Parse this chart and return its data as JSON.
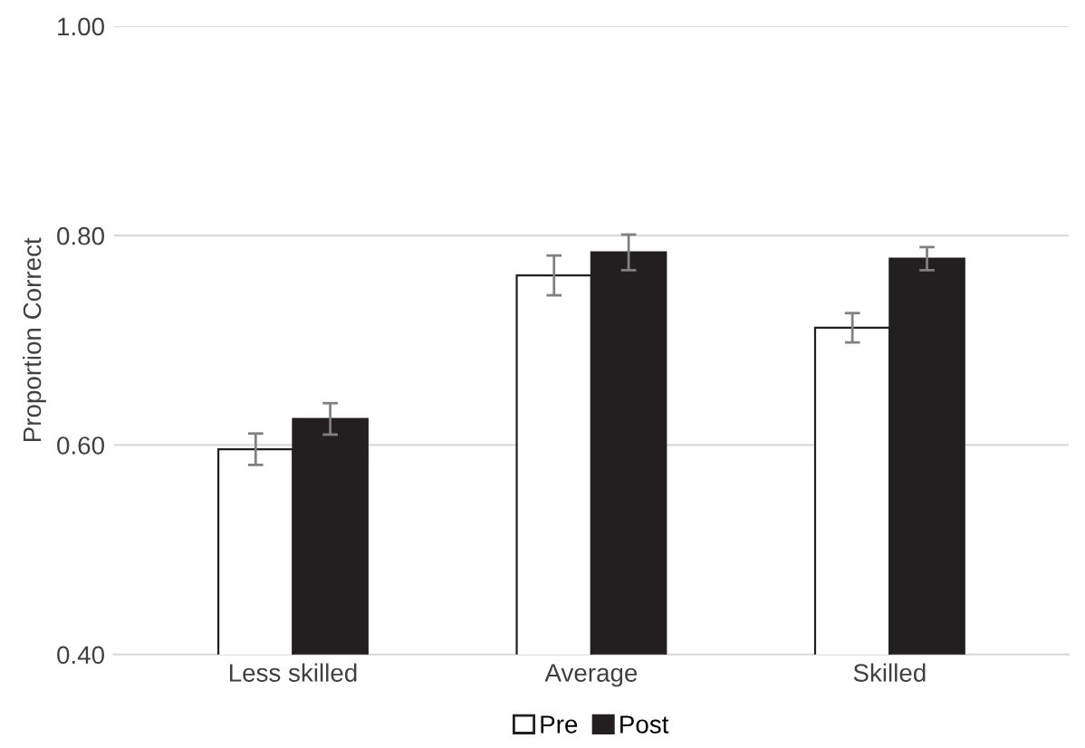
{
  "chart_data": {
    "type": "bar",
    "ylabel": "Proportion Correct",
    "categories": [
      "Less skilled",
      "Average",
      "Skilled"
    ],
    "series": [
      {
        "name": "Pre",
        "color": "#ffffff",
        "values": [
          0.596,
          0.762,
          0.712
        ],
        "errors": [
          0.015,
          0.019,
          0.014
        ]
      },
      {
        "name": "Post",
        "color": "#231f20",
        "values": [
          0.625,
          0.784,
          0.778
        ],
        "errors": [
          0.015,
          0.017,
          0.011
        ]
      }
    ],
    "ylim": [
      0.4,
      1.0
    ],
    "yticks": [
      {
        "value": 0.4,
        "label": "0.40"
      },
      {
        "value": 0.6,
        "label": "0.60"
      },
      {
        "value": 0.8,
        "label": "0.80"
      },
      {
        "value": 1.0,
        "label": "1.00"
      }
    ],
    "grid": "y",
    "legend": "bottom"
  }
}
